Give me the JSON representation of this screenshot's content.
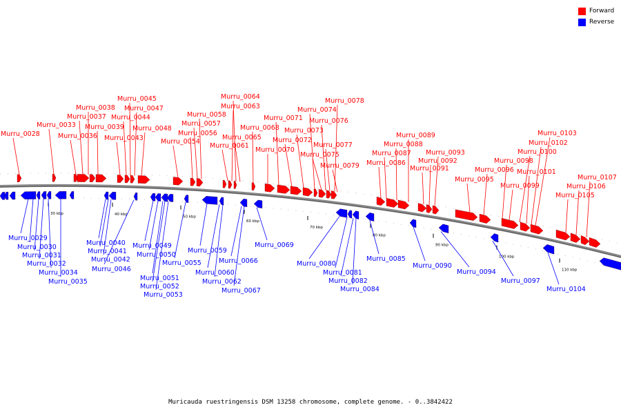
{
  "legend": {
    "forward_label": "Forward",
    "reverse_label": "Reverse",
    "forward_color": "#ff0000",
    "reverse_color": "#0000ff"
  },
  "caption": "Muricauda ruestringensis DSM 13258 chromosome, complete genome. - 0..3842422",
  "ticks": [
    "30 kbp",
    "40 kbp",
    "50 kbp",
    "60 kbp",
    "70 kbp",
    "80 kbp",
    "90 kbp",
    "100 kbp",
    "110 kbp"
  ],
  "forward_genes": [
    "Murru_0028",
    "Murru_0033",
    "Murru_0036",
    "Murru_0037",
    "Murru_0038",
    "Murru_0039",
    "Murru_0043",
    "Murru_0044",
    "Murru_0045",
    "Murru_0047",
    "Murru_0048",
    "Murru_0054",
    "Murru_0056",
    "Murru_0057",
    "Murru_0058",
    "Murru_0061",
    "Murru_0063",
    "Murru_0064",
    "Murru_0065",
    "Murru_0068",
    "Murru_0070",
    "Murru_0071",
    "Murru_0072",
    "Murru_0073",
    "Murru_0074",
    "Murru_0075",
    "Murru_0076",
    "Murru_0077",
    "Murru_0078",
    "Murru_0079",
    "Murru_0086",
    "Murru_0087",
    "Murru_0088",
    "Murru_0089",
    "Murru_0091",
    "Murru_0092",
    "Murru_0093",
    "Murru_0095",
    "Murru_0096",
    "Murru_0098",
    "Murru_0099",
    "Murru_0100",
    "Murru_0101",
    "Murru_0102",
    "Murru_0103",
    "Murru_0105",
    "Murru_0106",
    "Murru_0107"
  ],
  "reverse_genes": [
    "Murru_0029",
    "Murru_0030",
    "Murru_0031",
    "Murru_0032",
    "Murru_0034",
    "Murru_0035",
    "Murru_0040",
    "Murru_0041",
    "Murru_0042",
    "Murru_0046",
    "Murru_0049",
    "Murru_0050",
    "Murru_0051",
    "Murru_0052",
    "Murru_0053",
    "Murru_0055",
    "Murru_0059",
    "Murru_0060",
    "Murru_0062",
    "Murru_0066",
    "Murru_0067",
    "Murru_0069",
    "Murru_0080",
    "Murru_0081",
    "Murru_0082",
    "Murru_0084",
    "Murru_0085",
    "Murru_0090",
    "Murru_0094",
    "Murru_0097",
    "Murru_0104"
  ]
}
